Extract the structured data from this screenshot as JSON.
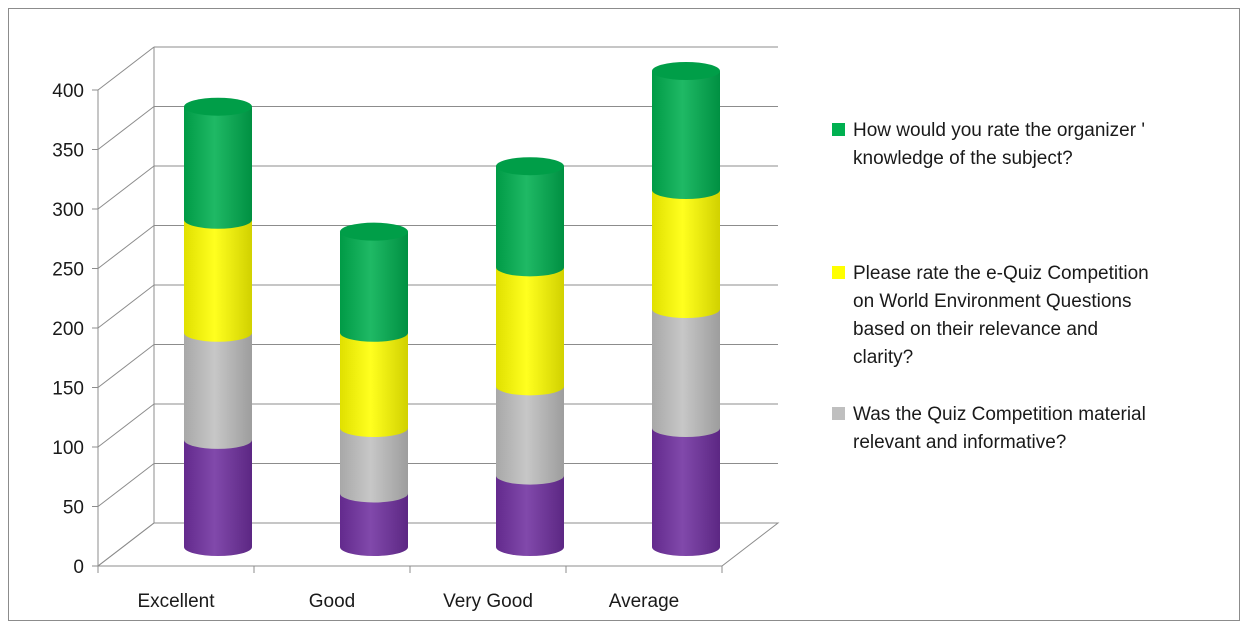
{
  "chart_data": {
    "type": "bar",
    "stacked": true,
    "style": "3d-cylinder",
    "categories": [
      "Excellent",
      "Good",
      "Very Good",
      "Average"
    ],
    "series": [
      {
        "name": "",
        "color": "#7030a0",
        "values": [
          90,
          45,
          60,
          100
        ]
      },
      {
        "name": "Was the Quiz Competition material relevant and informative?",
        "color": "#bfbfbf",
        "values": [
          90,
          55,
          75,
          100
        ]
      },
      {
        "name": "Please rate the e-Quiz Competition on World Environment Questions based on their relevance and clarity?",
        "color": "#ffff00",
        "values": [
          95,
          80,
          100,
          100
        ]
      },
      {
        "name": "How would you rate the organizer ' knowledge of the subject?",
        "color": "#00b050",
        "values": [
          95,
          85,
          85,
          100
        ]
      }
    ],
    "ylim": [
      0,
      400
    ],
    "y_ticks": [
      0,
      50,
      100,
      150,
      200,
      250,
      300,
      350,
      400
    ],
    "title": "",
    "xlabel": "",
    "ylabel": "",
    "grid": true,
    "legend_position": "right"
  },
  "legend": {
    "items": [
      {
        "lines": [
          "How would you rate the organizer '",
          "knowledge of the subject?"
        ],
        "color": "#00b050"
      },
      {
        "lines": [
          "Please rate the e-Quiz Competition",
          "on World Environment Questions",
          "based on their relevance and",
          "clarity?"
        ],
        "color": "#ffff00"
      },
      {
        "lines": [
          "Was the Quiz Competition material",
          "relevant and informative?"
        ],
        "color": "#bfbfbf"
      }
    ]
  }
}
